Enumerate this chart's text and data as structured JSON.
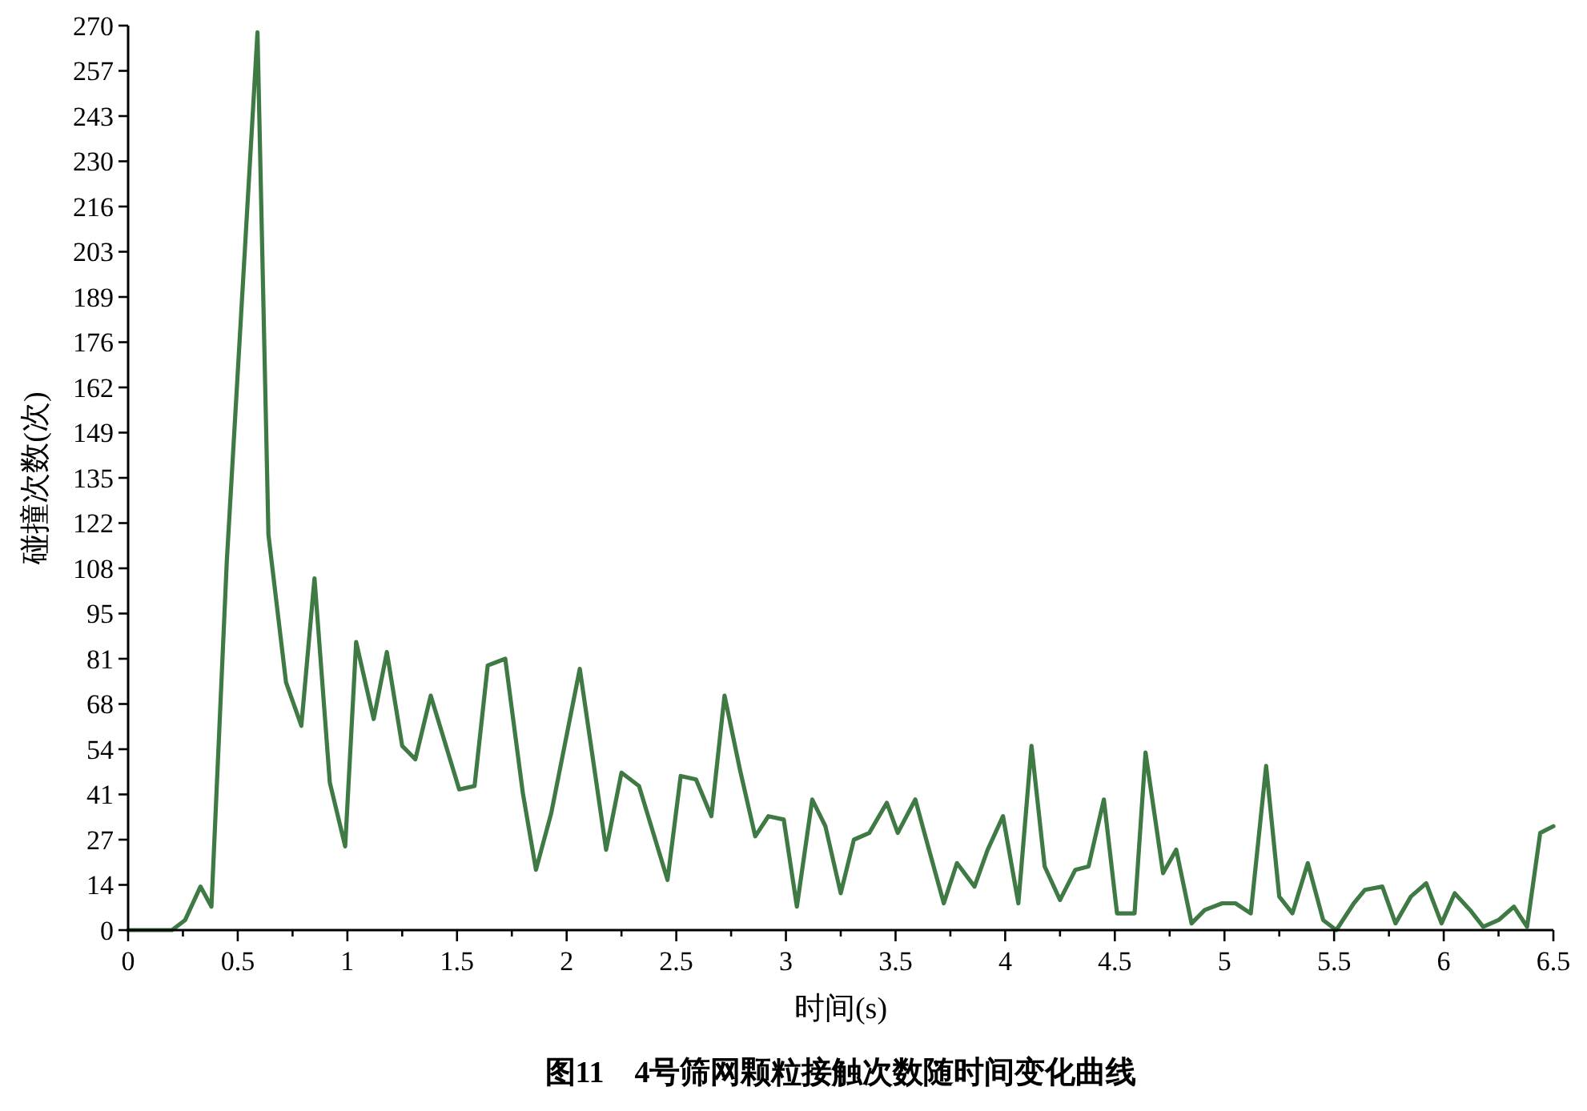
{
  "chart_data": {
    "type": "line",
    "title": "图11　4号筛网颗粒接触次数随时间变化曲线",
    "xlabel": "时间(s)",
    "ylabel": "碰撞次数(次)",
    "x": [
      0,
      0.2,
      0.26,
      0.33,
      0.38,
      0.45,
      0.59,
      0.64,
      0.72,
      0.79,
      0.85,
      0.92,
      0.99,
      1.04,
      1.12,
      1.18,
      1.25,
      1.31,
      1.38,
      1.51,
      1.58,
      1.64,
      1.72,
      1.8,
      1.86,
      1.93,
      2.06,
      2.18,
      2.25,
      2.33,
      2.46,
      2.52,
      2.59,
      2.66,
      2.72,
      2.79,
      2.86,
      2.92,
      2.99,
      3.05,
      3.12,
      3.18,
      3.25,
      3.31,
      3.38,
      3.46,
      3.51,
      3.59,
      3.64,
      3.72,
      3.78,
      3.86,
      3.92,
      3.99,
      4.06,
      4.12,
      4.18,
      4.25,
      4.32,
      4.38,
      4.45,
      4.51,
      4.59,
      4.64,
      4.72,
      4.78,
      4.85,
      4.91,
      4.99,
      5.05,
      5.12,
      5.19,
      5.25,
      5.31,
      5.38,
      5.45,
      5.51,
      5.59,
      5.64,
      5.72,
      5.78,
      5.85,
      5.92,
      5.99,
      6.05,
      6.12,
      6.18,
      6.25,
      6.32,
      6.38,
      6.44,
      6.5
    ],
    "series": [
      {
        "color": "#3f7a45",
        "values": [
          0,
          0,
          3,
          13,
          7,
          110,
          268,
          118,
          74,
          61,
          105,
          44,
          25,
          86,
          63,
          83,
          55,
          51,
          70,
          42,
          43,
          79,
          81,
          41,
          18,
          35,
          78,
          24,
          47,
          43,
          15,
          46,
          45,
          34,
          70,
          48,
          28,
          34,
          33,
          7,
          39,
          31,
          11,
          27,
          29,
          38,
          29,
          39,
          27,
          8,
          20,
          13,
          24,
          34,
          8,
          55,
          19,
          9,
          18,
          19,
          39,
          5,
          5,
          53,
          17,
          24,
          2,
          6,
          8,
          8,
          5,
          49,
          10,
          5,
          20,
          3,
          0,
          8,
          12,
          13,
          2,
          10,
          14,
          2,
          11,
          6,
          1,
          3,
          7,
          1,
          29,
          31
        ]
      }
    ],
    "xlim": [
      0,
      6.5
    ],
    "ylim": [
      0,
      270
    ],
    "xticks": [
      0,
      {
        "value": 0.25,
        "label": null
      },
      0.5,
      {
        "value": 0.75,
        "label": null
      },
      1,
      {
        "value": 1.25,
        "label": null
      },
      1.5,
      {
        "value": 1.75,
        "label": null
      },
      2,
      {
        "value": 2.25,
        "label": null
      },
      2.5,
      {
        "value": 2.75,
        "label": null
      },
      3,
      {
        "value": 3.25,
        "label": null
      },
      3.5,
      {
        "value": 3.75,
        "label": null
      },
      4,
      {
        "value": 4.25,
        "label": null
      },
      4.5,
      {
        "value": 4.75,
        "label": null
      },
      5,
      {
        "value": 5.25,
        "label": null
      },
      5.5,
      {
        "value": 5.75,
        "label": null
      },
      6,
      {
        "value": 6.25,
        "label": null
      },
      6.5
    ],
    "yticks": [
      0,
      {
        "value": 13.5,
        "label": "14"
      },
      27,
      {
        "value": 40.5,
        "label": "41"
      },
      54,
      {
        "value": 67.5,
        "label": "68"
      },
      81,
      {
        "value": 94.5,
        "label": "95"
      },
      108,
      {
        "value": 121.5,
        "label": "122"
      },
      135,
      {
        "value": 148.5,
        "label": "149"
      },
      162,
      {
        "value": 175.5,
        "label": "176"
      },
      189,
      {
        "value": 202.5,
        "label": "203"
      },
      216,
      {
        "value": 229.5,
        "label": "230"
      },
      243,
      {
        "value": 256.5,
        "label": "257"
      },
      270
    ],
    "grid": false,
    "marker": "none",
    "line_style": "solid"
  }
}
